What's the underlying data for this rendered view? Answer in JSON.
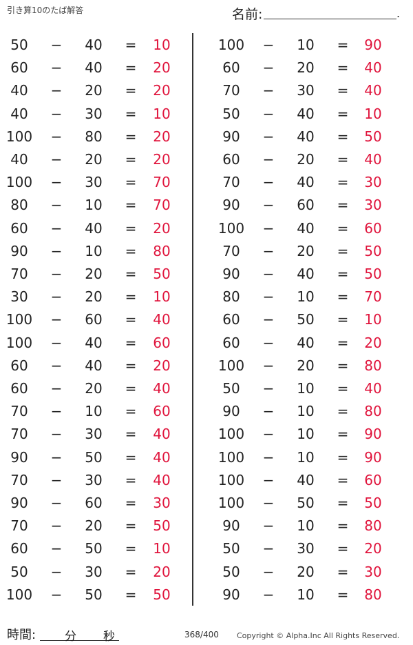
{
  "header": {
    "title": "引き算10のたば解答",
    "name_label": "名前:",
    "name_end": "."
  },
  "symbols": {
    "minus": "−",
    "equals": "="
  },
  "left": [
    [
      "50",
      "40",
      "10"
    ],
    [
      "60",
      "40",
      "20"
    ],
    [
      "40",
      "20",
      "20"
    ],
    [
      "40",
      "30",
      "10"
    ],
    [
      "100",
      "80",
      "20"
    ],
    [
      "40",
      "20",
      "20"
    ],
    [
      "100",
      "30",
      "70"
    ],
    [
      "80",
      "10",
      "70"
    ],
    [
      "60",
      "40",
      "20"
    ],
    [
      "90",
      "10",
      "80"
    ],
    [
      "70",
      "20",
      "50"
    ],
    [
      "30",
      "20",
      "10"
    ],
    [
      "100",
      "60",
      "40"
    ],
    [
      "100",
      "40",
      "60"
    ],
    [
      "60",
      "40",
      "20"
    ],
    [
      "60",
      "20",
      "40"
    ],
    [
      "70",
      "10",
      "60"
    ],
    [
      "70",
      "30",
      "40"
    ],
    [
      "90",
      "50",
      "40"
    ],
    [
      "70",
      "30",
      "40"
    ],
    [
      "90",
      "60",
      "30"
    ],
    [
      "70",
      "20",
      "50"
    ],
    [
      "60",
      "50",
      "10"
    ],
    [
      "50",
      "30",
      "20"
    ],
    [
      "100",
      "50",
      "50"
    ]
  ],
  "right": [
    [
      "100",
      "10",
      "90"
    ],
    [
      "60",
      "20",
      "40"
    ],
    [
      "70",
      "30",
      "40"
    ],
    [
      "50",
      "40",
      "10"
    ],
    [
      "90",
      "40",
      "50"
    ],
    [
      "60",
      "20",
      "40"
    ],
    [
      "70",
      "40",
      "30"
    ],
    [
      "90",
      "60",
      "30"
    ],
    [
      "100",
      "40",
      "60"
    ],
    [
      "70",
      "20",
      "50"
    ],
    [
      "90",
      "40",
      "50"
    ],
    [
      "80",
      "10",
      "70"
    ],
    [
      "60",
      "50",
      "10"
    ],
    [
      "60",
      "40",
      "20"
    ],
    [
      "100",
      "20",
      "80"
    ],
    [
      "50",
      "10",
      "40"
    ],
    [
      "90",
      "10",
      "80"
    ],
    [
      "100",
      "10",
      "90"
    ],
    [
      "100",
      "10",
      "90"
    ],
    [
      "100",
      "40",
      "60"
    ],
    [
      "100",
      "50",
      "50"
    ],
    [
      "90",
      "10",
      "80"
    ],
    [
      "50",
      "30",
      "20"
    ],
    [
      "50",
      "20",
      "30"
    ],
    [
      "90",
      "10",
      "80"
    ]
  ],
  "footer": {
    "time_label": "時間:",
    "minutes": "分",
    "seconds": "秒",
    "page": "368/400",
    "copyright": "Copyright ©  Alpha.Inc All Rights Reserved."
  },
  "colors": {
    "answer": "#e0143c"
  }
}
